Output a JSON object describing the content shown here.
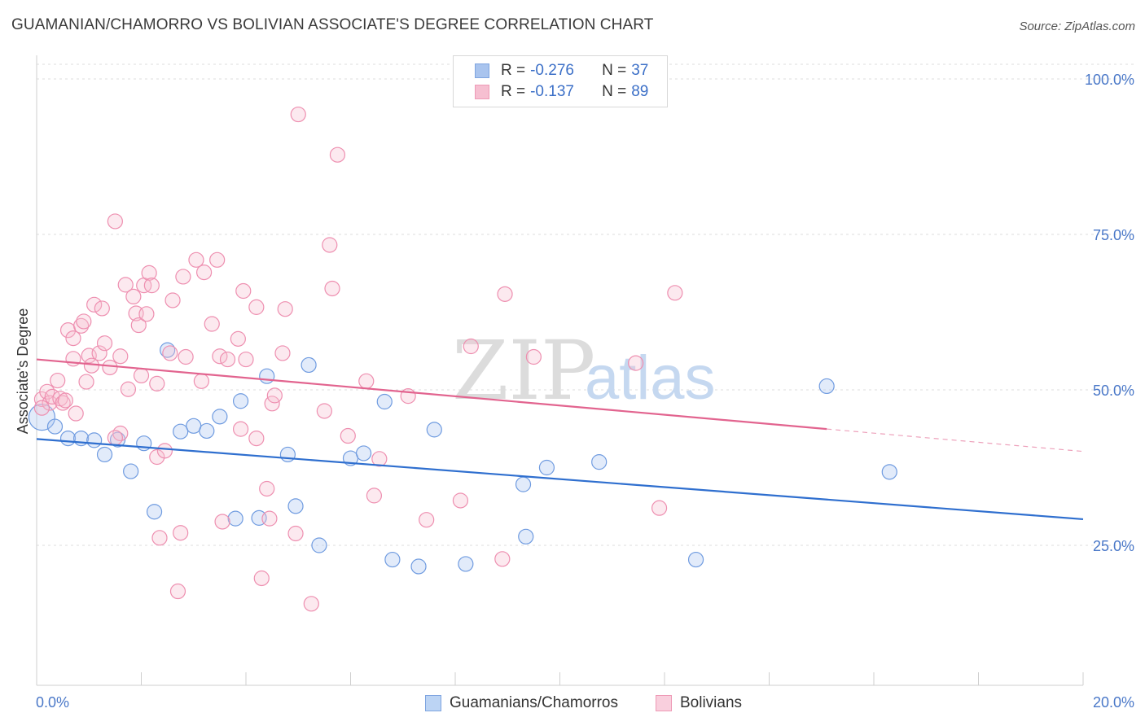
{
  "title": "GUAMANIAN/CHAMORRO VS BOLIVIAN ASSOCIATE'S DEGREE CORRELATION CHART",
  "source": "Source: ZipAtlas.com",
  "watermark": {
    "zip": "ZIP",
    "atlas": "atlas"
  },
  "legend": {
    "rows": [
      {
        "r_label": "R =",
        "r_value": "-0.276",
        "n_label": "N =",
        "n_value": "37",
        "color": "#a9c4ee",
        "border": "#7fa5e0"
      },
      {
        "r_label": "R =",
        "r_value": "-0.137",
        "n_label": "N =",
        "n_value": "89",
        "color": "#f6bfd1",
        "border": "#ee9ab6"
      }
    ]
  },
  "bottom_legend": [
    {
      "label": "Guamanians/Chamorros",
      "color": "#bcd4f4",
      "border": "#7fa5e0"
    },
    {
      "label": "Bolivians",
      "color": "#f9cfdd",
      "border": "#ee9ab6"
    }
  ],
  "chart_data": {
    "type": "scatter",
    "title": "GUAMANIAN/CHAMORRO VS BOLIVIAN ASSOCIATE'S DEGREE CORRELATION CHART",
    "xlabel": "",
    "ylabel": "Associate's Degree",
    "xlim": [
      0,
      20
    ],
    "ylim": [
      0,
      105
    ],
    "x_tick_labels": [
      "0.0%",
      "20.0%"
    ],
    "y_ticks": [
      25,
      50,
      75,
      100
    ],
    "y_tick_labels": [
      "25.0%",
      "50.0%",
      "75.0%",
      "100.0%"
    ],
    "grid": true,
    "series": [
      {
        "name": "Guamanians/Chamorros",
        "color": "#6f9be0",
        "fill": "rgba(173,199,240,0.35)",
        "trend": {
          "x0": 0,
          "y0": 42.1,
          "x1": 20,
          "y1": 29.2,
          "color": "#2f6fcf"
        },
        "points": [
          [
            0.1,
            45.6
          ],
          [
            0.35,
            44.1
          ],
          [
            0.6,
            42.2
          ],
          [
            0.85,
            42.2
          ],
          [
            1.1,
            41.9
          ],
          [
            1.3,
            39.6
          ],
          [
            1.55,
            42.0
          ],
          [
            1.8,
            36.9
          ],
          [
            2.05,
            41.4
          ],
          [
            2.25,
            30.4
          ],
          [
            2.5,
            56.4
          ],
          [
            2.75,
            43.3
          ],
          [
            3.0,
            44.2
          ],
          [
            3.25,
            43.4
          ],
          [
            3.5,
            45.7
          ],
          [
            3.8,
            29.3
          ],
          [
            3.9,
            48.2
          ],
          [
            4.25,
            29.4
          ],
          [
            4.4,
            52.2
          ],
          [
            4.8,
            39.6
          ],
          [
            4.95,
            31.3
          ],
          [
            5.2,
            54.0
          ],
          [
            5.4,
            25.0
          ],
          [
            6.0,
            39.0
          ],
          [
            6.25,
            39.8
          ],
          [
            6.65,
            48.1
          ],
          [
            6.8,
            22.7
          ],
          [
            7.3,
            21.6
          ],
          [
            7.6,
            43.6
          ],
          [
            8.2,
            22.0
          ],
          [
            9.3,
            34.8
          ],
          [
            9.35,
            26.4
          ],
          [
            9.75,
            37.5
          ],
          [
            10.75,
            38.4
          ],
          [
            12.6,
            22.7
          ],
          [
            15.1,
            50.6
          ],
          [
            16.3,
            36.8
          ]
        ]
      },
      {
        "name": "Bolivians",
        "color": "#ee8fb0",
        "fill": "rgba(246,191,209,0.35)",
        "trend": {
          "x0": 0,
          "y0": 54.9,
          "x1": 15.1,
          "y1": 43.7,
          "dash_to": {
            "x": 20,
            "y": 40.1
          },
          "color": "#e2648f"
        },
        "points": [
          [
            0.1,
            48.5
          ],
          [
            0.2,
            49.7
          ],
          [
            0.25,
            47.9
          ],
          [
            0.3,
            48.9
          ],
          [
            0.4,
            51.5
          ],
          [
            0.45,
            48.6
          ],
          [
            0.5,
            47.9
          ],
          [
            0.55,
            48.3
          ],
          [
            0.6,
            59.6
          ],
          [
            0.7,
            58.3
          ],
          [
            0.7,
            55.0
          ],
          [
            0.75,
            46.2
          ],
          [
            0.85,
            60.3
          ],
          [
            0.9,
            61.0
          ],
          [
            0.95,
            51.3
          ],
          [
            1.0,
            55.5
          ],
          [
            1.05,
            53.9
          ],
          [
            1.1,
            63.7
          ],
          [
            1.2,
            55.9
          ],
          [
            1.25,
            63.1
          ],
          [
            1.3,
            57.5
          ],
          [
            1.4,
            53.6
          ],
          [
            1.5,
            77.1
          ],
          [
            1.6,
            55.4
          ],
          [
            1.6,
            43.0
          ],
          [
            1.7,
            66.9
          ],
          [
            1.75,
            50.1
          ],
          [
            1.85,
            65.0
          ],
          [
            1.9,
            62.3
          ],
          [
            1.95,
            60.4
          ],
          [
            2.0,
            52.3
          ],
          [
            2.05,
            66.8
          ],
          [
            2.1,
            62.2
          ],
          [
            2.15,
            68.8
          ],
          [
            2.2,
            66.8
          ],
          [
            2.3,
            39.2
          ],
          [
            2.35,
            26.2
          ],
          [
            2.45,
            40.2
          ],
          [
            2.55,
            55.9
          ],
          [
            2.6,
            64.4
          ],
          [
            2.7,
            17.6
          ],
          [
            2.75,
            27.0
          ],
          [
            2.8,
            68.2
          ],
          [
            2.85,
            55.3
          ],
          [
            3.05,
            70.9
          ],
          [
            3.15,
            51.4
          ],
          [
            3.2,
            68.9
          ],
          [
            3.35,
            60.6
          ],
          [
            3.45,
            70.9
          ],
          [
            3.5,
            55.4
          ],
          [
            3.55,
            28.8
          ],
          [
            3.65,
            54.9
          ],
          [
            3.85,
            58.2
          ],
          [
            3.9,
            43.7
          ],
          [
            3.95,
            65.9
          ],
          [
            4.0,
            54.9
          ],
          [
            4.2,
            42.2
          ],
          [
            4.2,
            63.3
          ],
          [
            4.3,
            19.7
          ],
          [
            4.4,
            34.1
          ],
          [
            4.5,
            47.8
          ],
          [
            4.55,
            49.1
          ],
          [
            4.7,
            55.9
          ],
          [
            4.75,
            63.0
          ],
          [
            4.95,
            26.9
          ],
          [
            5.0,
            94.3
          ],
          [
            5.25,
            15.6
          ],
          [
            5.5,
            46.6
          ],
          [
            5.6,
            73.3
          ],
          [
            5.65,
            66.3
          ],
          [
            5.75,
            87.8
          ],
          [
            5.95,
            42.6
          ],
          [
            6.3,
            51.4
          ],
          [
            6.45,
            33.0
          ],
          [
            6.55,
            38.9
          ],
          [
            7.1,
            49.0
          ],
          [
            7.45,
            29.1
          ],
          [
            8.1,
            32.2
          ],
          [
            8.3,
            57.0
          ],
          [
            8.9,
            22.8
          ],
          [
            8.95,
            65.4
          ],
          [
            9.5,
            55.3
          ],
          [
            11.45,
            54.3
          ],
          [
            11.9,
            31.0
          ],
          [
            12.2,
            65.6
          ],
          [
            1.5,
            42.3
          ],
          [
            2.3,
            51.0
          ],
          [
            4.45,
            29.3
          ],
          [
            0.1,
            47.1
          ]
        ]
      }
    ]
  }
}
